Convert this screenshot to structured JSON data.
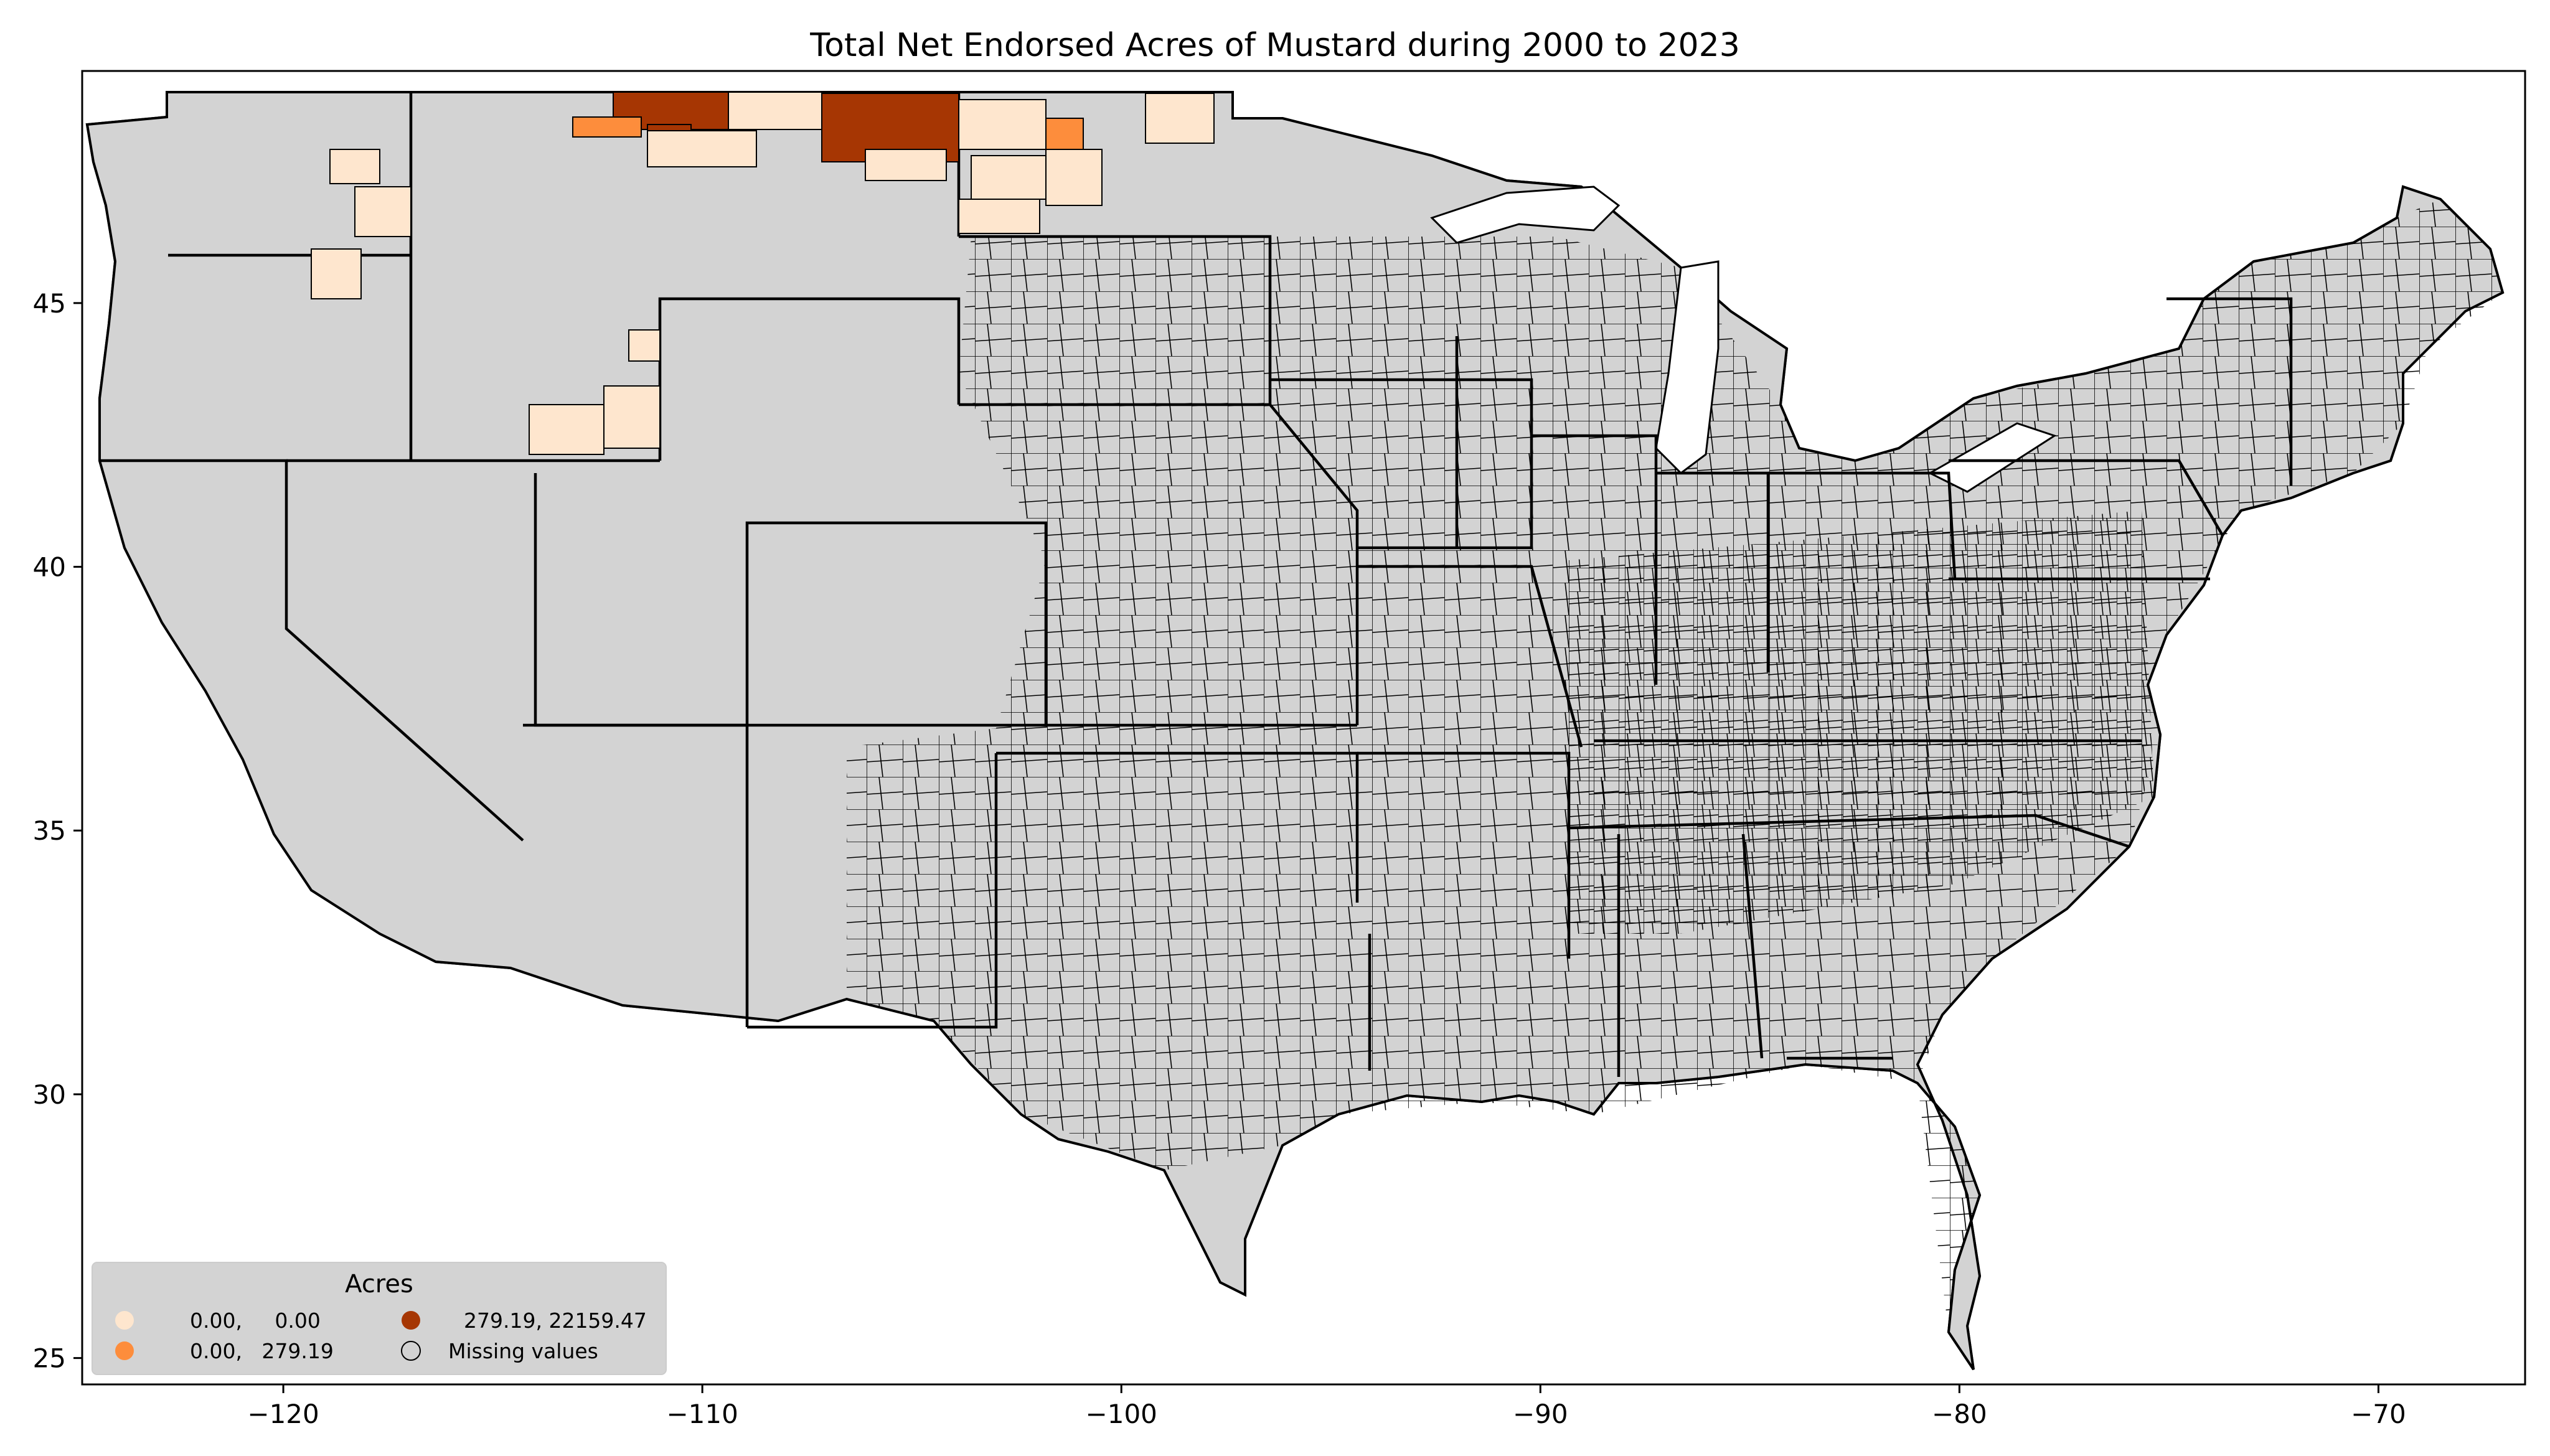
{
  "title": "Total Net Endorsed Acres of Mustard during 2000 to 2023",
  "colors": {
    "missing": "#d3d3d3",
    "class_low": "#fee6ce",
    "class_mid": "#fd8d3c",
    "class_high": "#a63603",
    "border": "#000000"
  },
  "axes": {
    "x_ticks": [
      "−120",
      "−110",
      "−100",
      "−90",
      "−80",
      "−70"
    ],
    "x_values": [
      -120,
      -110,
      -100,
      -90,
      -80,
      -70
    ],
    "y_ticks": [
      "45",
      "40",
      "35",
      "30",
      "25"
    ],
    "y_values": [
      45,
      40,
      35,
      30,
      25
    ],
    "x_range": [
      -124.8,
      -66.5
    ],
    "y_range": [
      24.5,
      49.4
    ]
  },
  "legend": {
    "title": "Acres",
    "items": [
      {
        "label": "0.00,     0.00",
        "color_key": "class_low"
      },
      {
        "label": "0.00,   279.19",
        "color_key": "class_mid"
      },
      {
        "label": "279.19, 22159.47",
        "color_key": "class_high"
      },
      {
        "label": "Missing values",
        "color_key": "missing"
      }
    ]
  }
}
